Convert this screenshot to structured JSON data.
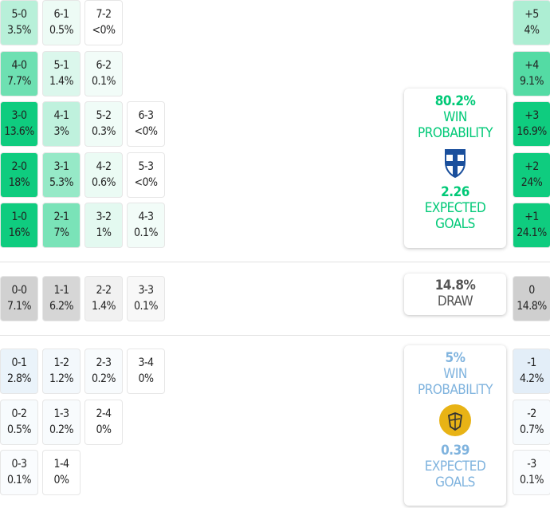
{
  "colors": {
    "home": "#00c977",
    "away": "#7fb3de",
    "draw": "#555555"
  },
  "home_cells": [
    {
      "score": "5-0",
      "pct": "3.5%",
      "v": 3.5,
      "col": 0,
      "row": 0
    },
    {
      "score": "6-1",
      "pct": "0.5%",
      "v": 0.5,
      "col": 1,
      "row": 0
    },
    {
      "score": "7-2",
      "pct": "<0%",
      "v": 0,
      "col": 2,
      "row": 0
    },
    {
      "score": "4-0",
      "pct": "7.7%",
      "v": 7.7,
      "col": 0,
      "row": 1
    },
    {
      "score": "5-1",
      "pct": "1.4%",
      "v": 1.4,
      "col": 1,
      "row": 1
    },
    {
      "score": "6-2",
      "pct": "0.1%",
      "v": 0.1,
      "col": 2,
      "row": 1
    },
    {
      "score": "3-0",
      "pct": "13.6%",
      "v": 13.6,
      "col": 0,
      "row": 2
    },
    {
      "score": "4-1",
      "pct": "3%",
      "v": 3,
      "col": 1,
      "row": 2
    },
    {
      "score": "5-2",
      "pct": "0.3%",
      "v": 0.3,
      "col": 2,
      "row": 2
    },
    {
      "score": "6-3",
      "pct": "<0%",
      "v": 0,
      "col": 3,
      "row": 2
    },
    {
      "score": "2-0",
      "pct": "18%",
      "v": 18,
      "col": 0,
      "row": 3
    },
    {
      "score": "3-1",
      "pct": "5.3%",
      "v": 5.3,
      "col": 1,
      "row": 3
    },
    {
      "score": "4-2",
      "pct": "0.6%",
      "v": 0.6,
      "col": 2,
      "row": 3
    },
    {
      "score": "5-3",
      "pct": "<0%",
      "v": 0,
      "col": 3,
      "row": 3
    },
    {
      "score": "1-0",
      "pct": "16%",
      "v": 16,
      "col": 0,
      "row": 4
    },
    {
      "score": "2-1",
      "pct": "7%",
      "v": 7,
      "col": 1,
      "row": 4
    },
    {
      "score": "3-2",
      "pct": "1%",
      "v": 1,
      "col": 2,
      "row": 4
    },
    {
      "score": "4-3",
      "pct": "0.1%",
      "v": 0.1,
      "col": 3,
      "row": 4
    }
  ],
  "draw_cells": [
    {
      "score": "0-0",
      "pct": "7.1%",
      "v": 7.1,
      "col": 0
    },
    {
      "score": "1-1",
      "pct": "6.2%",
      "v": 6.2,
      "col": 1
    },
    {
      "score": "2-2",
      "pct": "1.4%",
      "v": 1.4,
      "col": 2
    },
    {
      "score": "3-3",
      "pct": "0.1%",
      "v": 0.1,
      "col": 3
    }
  ],
  "away_cells": [
    {
      "score": "0-1",
      "pct": "2.8%",
      "v": 2.8,
      "col": 0,
      "row": 0
    },
    {
      "score": "1-2",
      "pct": "1.2%",
      "v": 1.2,
      "col": 1,
      "row": 0
    },
    {
      "score": "2-3",
      "pct": "0.2%",
      "v": 0.2,
      "col": 2,
      "row": 0
    },
    {
      "score": "3-4",
      "pct": "0%",
      "v": 0,
      "col": 3,
      "row": 0
    },
    {
      "score": "0-2",
      "pct": "0.5%",
      "v": 0.5,
      "col": 0,
      "row": 1
    },
    {
      "score": "1-3",
      "pct": "0.2%",
      "v": 0.2,
      "col": 1,
      "row": 1
    },
    {
      "score": "2-4",
      "pct": "0%",
      "v": 0,
      "col": 2,
      "row": 1
    },
    {
      "score": "0-3",
      "pct": "0.1%",
      "v": 0.1,
      "col": 0,
      "row": 2
    },
    {
      "score": "1-4",
      "pct": "0%",
      "v": 0,
      "col": 1,
      "row": 2
    }
  ],
  "margins": [
    {
      "label": "+5",
      "pct": "4%",
      "v": 4,
      "side": "home"
    },
    {
      "label": "+4",
      "pct": "9.1%",
      "v": 9.1,
      "side": "home"
    },
    {
      "label": "+3",
      "pct": "16.9%",
      "v": 16.9,
      "side": "home"
    },
    {
      "label": "+2",
      "pct": "24%",
      "v": 24,
      "side": "home"
    },
    {
      "label": "+1",
      "pct": "24.1%",
      "v": 24.1,
      "side": "home"
    },
    {
      "label": "0",
      "pct": "14.8%",
      "v": 14.8,
      "side": "draw"
    },
    {
      "label": "-1",
      "pct": "4.2%",
      "v": 4.2,
      "side": "away"
    },
    {
      "label": "-2",
      "pct": "0.7%",
      "v": 0.7,
      "side": "away"
    },
    {
      "label": "-3",
      "pct": "0.1%",
      "v": 0.1,
      "side": "away"
    }
  ],
  "home_card": {
    "win_pct": "80.2%",
    "win_label_1": "WIN",
    "win_label_2": "PROBABILITY",
    "xg": "2.26",
    "xg_label_1": "EXPECTED",
    "xg_label_2": "GOALS",
    "badge": "finland-crest-icon"
  },
  "draw_card": {
    "pct": "14.8%",
    "label": "DRAW"
  },
  "away_card": {
    "win_pct": "5%",
    "win_label_1": "WIN",
    "win_label_2": "PROBABILITY",
    "xg": "0.39",
    "xg_label_1": "EXPECTED",
    "xg_label_2": "GOALS",
    "badge": "opponent-crest-icon"
  }
}
